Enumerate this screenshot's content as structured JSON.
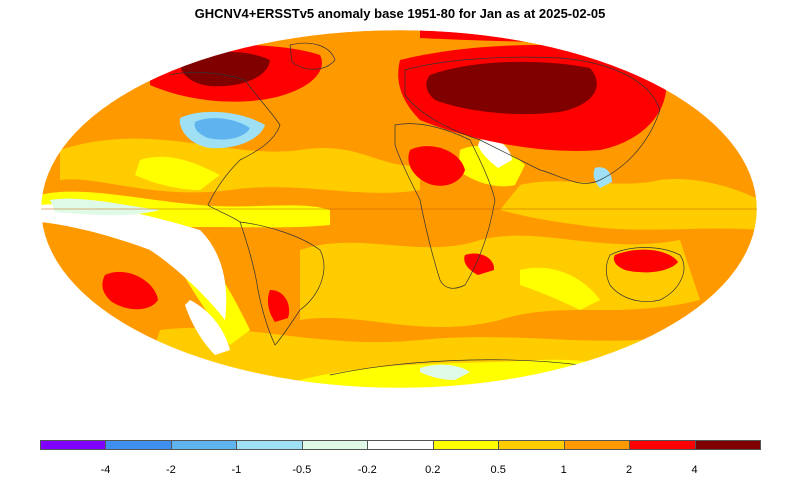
{
  "title": "GHCNV4+ERSSTv5 anomaly base 1951-80 for Jan as at 2025-02-05",
  "legend": {
    "colors": [
      "#8000ff",
      "#3f8ff0",
      "#5fb4f0",
      "#9fe0f5",
      "#e0fae8",
      "#ffffff",
      "#ffff00",
      "#ffcc00",
      "#ff9900",
      "#ff0000",
      "#800000"
    ],
    "tick_labels": [
      "-4",
      "-2",
      "-1",
      "-0.5",
      "-0.2",
      "0.2",
      "0.5",
      "1",
      "2",
      "4"
    ]
  },
  "map": {
    "projection": "Mollweide",
    "palette": {
      "dark_red": "#800000",
      "red": "#ff0000",
      "orange": "#ff9900",
      "gold": "#ffcc00",
      "yellow": "#ffff00",
      "white": "#ffffff",
      "pale": "#e0fae8",
      "light_blue": "#9fe0f5",
      "blue": "#5fb4f0",
      "deep_blue": "#3f8ff0"
    }
  }
}
